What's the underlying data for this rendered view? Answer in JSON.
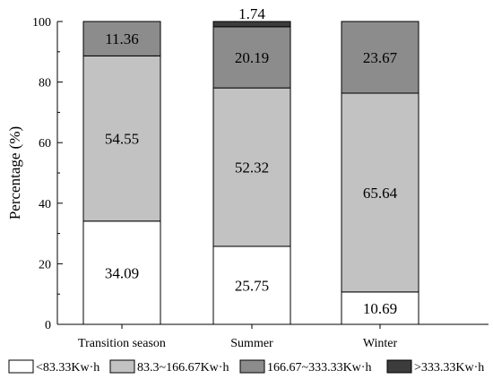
{
  "chart_data": {
    "type": "bar",
    "stacked": true,
    "categories": [
      "Transition season",
      "Summer",
      "Winter"
    ],
    "series": [
      {
        "name": "<83.33Kw·h",
        "values": [
          34.09,
          25.75,
          10.69
        ],
        "color": "#ffffff"
      },
      {
        "name": "83.3~166.67Kw·h",
        "values": [
          54.55,
          52.32,
          65.64
        ],
        "color": "#c2c2c2"
      },
      {
        "name": "166.67~333.33Kw·h",
        "values": [
          11.36,
          20.19,
          23.67
        ],
        "color": "#8c8c8c"
      },
      {
        "name": ">333.33Kw·h",
        "values": [
          0,
          1.74,
          0
        ],
        "color": "#3c3c3c"
      }
    ],
    "data_labels": [
      [
        "34.09",
        "25.75",
        "10.69"
      ],
      [
        "54.55",
        "52.32",
        "65.64"
      ],
      [
        "11.36",
        "20.19",
        "23.67"
      ],
      [
        "",
        "1.74",
        ""
      ]
    ],
    "xlabel": "",
    "ylabel": "Percentage (%)",
    "ylim": [
      0,
      100
    ],
    "yticks": [
      0,
      20,
      40,
      60,
      80,
      100
    ],
    "legend_position": "bottom",
    "grid": false
  }
}
